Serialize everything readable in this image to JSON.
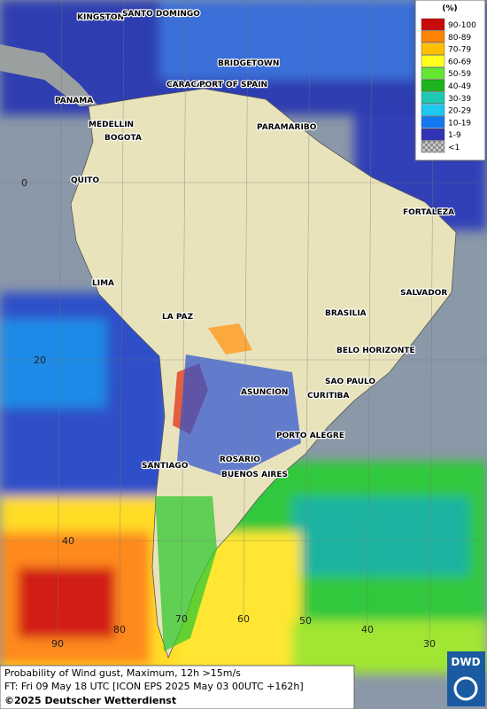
{
  "map": {
    "cities": [
      "KINGSTON",
      "SANTO DOMINGO",
      "BRIDGETOWN",
      "CARACAS",
      "PORT OF SPAIN",
      "PANAMA",
      "MEDELLIN",
      "BOGOTA",
      "PARAMARIBO",
      "QUITO",
      "FORTALEZA",
      "LIMA",
      "SALVADOR",
      "BRASILIA",
      "LA PAZ",
      "BELO HORIZONTE",
      "SAO PAULO",
      "ASUNCION",
      "CURITIBA",
      "PORTO ALEGRE",
      "ROSARIO",
      "SANTIAGO",
      "BUENOS AIRES"
    ],
    "latitude_labels": [
      "0",
      "20",
      "40"
    ],
    "longitude_labels": [
      "90",
      "80",
      "70",
      "60",
      "50",
      "40",
      "30"
    ],
    "legend": {
      "unit": "(%)",
      "classes": [
        {
          "label": "90-100",
          "color": "#c80a0a"
        },
        {
          "label": "80-89",
          "color": "#ff8200"
        },
        {
          "label": "70-79",
          "color": "#ffc000"
        },
        {
          "label": "60-69",
          "color": "#ffff1e"
        },
        {
          "label": "50-59",
          "color": "#64e632"
        },
        {
          "label": "40-49",
          "color": "#1eb41e"
        },
        {
          "label": "30-39",
          "color": "#1ec8b4"
        },
        {
          "label": "20-29",
          "color": "#1ec8f0"
        },
        {
          "label": "10-19",
          "color": "#1478f0"
        },
        {
          "label": "1-9",
          "color": "#3232b4"
        },
        {
          "label": "<1",
          "color": "checker"
        }
      ]
    },
    "footer": {
      "line1": "Probability of Wind gust, Maximum, 12h >15m/s",
      "line2": "FT: Fri 09 May 18 UTC [ICON EPS 2025 May 03 00UTC +162h]",
      "copyright": "©2025 Deutscher Wetterdienst"
    },
    "logo": "DWD"
  }
}
